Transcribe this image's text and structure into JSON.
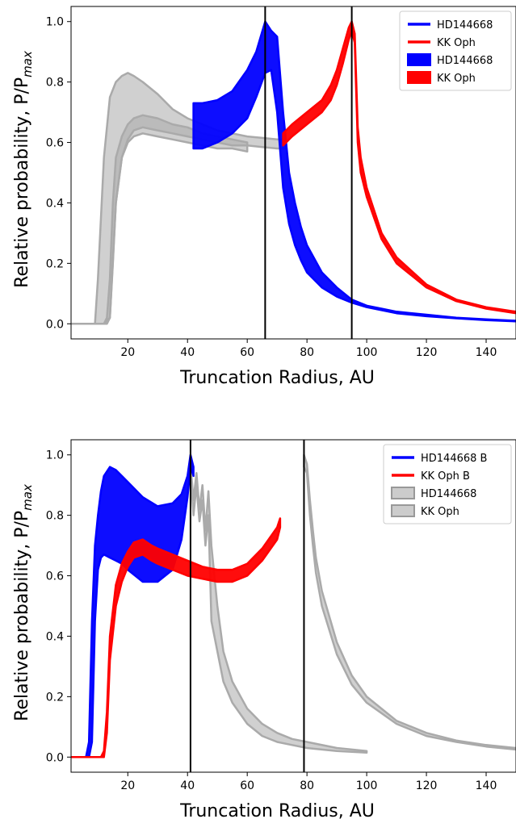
{
  "chart_data": [
    {
      "type": "line",
      "xlabel": "Truncation Radius, AU",
      "ylabel_main": "Relative probability, P/P",
      "ylabel_sub": "max",
      "xlim": [
        1,
        150
      ],
      "ylim": [
        -0.05,
        1.05
      ],
      "xticks": [
        20,
        40,
        60,
        80,
        100,
        120,
        140
      ],
      "yticks": [
        0.0,
        0.2,
        0.4,
        0.6,
        0.8,
        1.0
      ],
      "ytick_labels": [
        "0.0",
        "0.2",
        "0.4",
        "0.6",
        "0.8",
        "1.0"
      ],
      "vlines": [
        66,
        95
      ],
      "legend_position": "top-right",
      "legend": [
        {
          "label": "HD144668",
          "kind": "line",
          "color": "#0000ff"
        },
        {
          "label": "KK Oph",
          "kind": "line",
          "color": "#ff0000"
        },
        {
          "label": "HD144668",
          "kind": "patch",
          "color": "#0000ff"
        },
        {
          "label": "KK Oph",
          "kind": "patch",
          "color": "#ff0000"
        }
      ],
      "series": [
        {
          "color": "#aaaaaa",
          "style": "band",
          "x": [
            1,
            9,
            10,
            12,
            14,
            16,
            18,
            20,
            22,
            25,
            30,
            35,
            40,
            45,
            50,
            55,
            60,
            65,
            70,
            73
          ],
          "upper": [
            0,
            0,
            0.15,
            0.55,
            0.75,
            0.8,
            0.82,
            0.83,
            0.82,
            0.8,
            0.76,
            0.71,
            0.68,
            0.66,
            0.64,
            0.63,
            0.62,
            0.615,
            0.61,
            0.61
          ],
          "lower": [
            0,
            0,
            0,
            0,
            0.02,
            0.4,
            0.55,
            0.61,
            0.64,
            0.65,
            0.64,
            0.63,
            0.62,
            0.61,
            0.6,
            0.59,
            0.59,
            0.585,
            0.58,
            0.58
          ]
        },
        {
          "color": "#aaaaaa",
          "style": "band",
          "x": [
            1,
            12,
            13,
            14,
            15,
            16,
            18,
            20,
            22,
            25,
            30,
            35,
            40,
            45,
            50,
            55,
            60
          ],
          "upper": [
            0,
            0,
            0.02,
            0.15,
            0.4,
            0.55,
            0.62,
            0.66,
            0.68,
            0.69,
            0.68,
            0.66,
            0.65,
            0.63,
            0.62,
            0.61,
            0.6
          ],
          "lower": [
            0,
            0,
            0,
            0.02,
            0.2,
            0.4,
            0.55,
            0.6,
            0.62,
            0.63,
            0.62,
            0.61,
            0.6,
            0.59,
            0.58,
            0.58,
            0.57
          ]
        },
        {
          "color": "#0000ff",
          "style": "band",
          "x": [
            42,
            45,
            50,
            55,
            60,
            63,
            66,
            68,
            70,
            72,
            74,
            76,
            78,
            80,
            85,
            90,
            95,
            100,
            110,
            120,
            130,
            140,
            150
          ],
          "upper": [
            0.73,
            0.73,
            0.74,
            0.77,
            0.84,
            0.9,
            1.0,
            0.97,
            0.95,
            0.7,
            0.5,
            0.4,
            0.32,
            0.26,
            0.17,
            0.12,
            0.08,
            0.06,
            0.04,
            0.03,
            0.02,
            0.015,
            0.01
          ],
          "lower": [
            0.58,
            0.58,
            0.6,
            0.63,
            0.68,
            0.75,
            0.83,
            0.84,
            0.7,
            0.45,
            0.33,
            0.26,
            0.21,
            0.17,
            0.12,
            0.09,
            0.07,
            0.055,
            0.035,
            0.025,
            0.018,
            0.012,
            0.008
          ]
        },
        {
          "color": "#ff0000",
          "style": "band",
          "x": [
            72,
            75,
            80,
            85,
            88,
            90,
            92,
            94,
            95,
            96,
            97,
            98,
            100,
            105,
            110,
            120,
            130,
            140,
            150
          ],
          "upper": [
            0.63,
            0.66,
            0.7,
            0.74,
            0.79,
            0.84,
            0.91,
            0.98,
            1.0,
            0.96,
            0.65,
            0.55,
            0.45,
            0.3,
            0.22,
            0.13,
            0.08,
            0.055,
            0.04
          ],
          "lower": [
            0.59,
            0.62,
            0.66,
            0.7,
            0.74,
            0.79,
            0.86,
            0.94,
            0.97,
            0.93,
            0.6,
            0.5,
            0.42,
            0.28,
            0.2,
            0.12,
            0.075,
            0.05,
            0.035
          ]
        }
      ]
    },
    {
      "type": "line",
      "xlabel": "Truncation Radius, AU",
      "ylabel_main": "Relative probability, P/P",
      "ylabel_sub": "max",
      "xlim": [
        1,
        150
      ],
      "ylim": [
        -0.05,
        1.05
      ],
      "xticks": [
        20,
        40,
        60,
        80,
        100,
        120,
        140
      ],
      "yticks": [
        0.0,
        0.2,
        0.4,
        0.6,
        0.8,
        1.0
      ],
      "ytick_labels": [
        "0.0",
        "0.2",
        "0.4",
        "0.6",
        "0.8",
        "1.0"
      ],
      "vlines": [
        41,
        79
      ],
      "legend_position": "top-right",
      "legend": [
        {
          "label": "HD144668 B",
          "kind": "line",
          "color": "#0000ff"
        },
        {
          "label": "KK Oph B",
          "kind": "line",
          "color": "#ff0000"
        },
        {
          "label": "HD144668",
          "kind": "patch",
          "color": "#aaaaaa"
        },
        {
          "label": "KK Oph",
          "kind": "patch",
          "color": "#aaaaaa"
        }
      ],
      "series": [
        {
          "color": "#aaaaaa",
          "style": "band",
          "x": [
            41,
            42,
            43,
            44,
            45,
            46,
            47,
            48,
            50,
            52,
            55,
            60,
            65,
            70,
            75,
            80,
            90,
            100
          ],
          "upper": [
            0.97,
            0.85,
            0.94,
            0.82,
            0.9,
            0.75,
            0.88,
            0.7,
            0.5,
            0.35,
            0.25,
            0.16,
            0.11,
            0.08,
            0.06,
            0.05,
            0.03,
            0.02
          ],
          "lower": [
            0.95,
            0.8,
            0.9,
            0.78,
            0.85,
            0.7,
            0.8,
            0.45,
            0.35,
            0.25,
            0.18,
            0.11,
            0.07,
            0.05,
            0.04,
            0.03,
            0.02,
            0.015
          ]
        },
        {
          "color": "#aaaaaa",
          "style": "band",
          "x": [
            79,
            80,
            81,
            82,
            83,
            85,
            90,
            95,
            100,
            110,
            120,
            130,
            140,
            150
          ],
          "upper": [
            1.0,
            0.97,
            0.85,
            0.75,
            0.66,
            0.55,
            0.38,
            0.27,
            0.2,
            0.12,
            0.08,
            0.055,
            0.04,
            0.03
          ],
          "lower": [
            0.96,
            0.94,
            0.8,
            0.7,
            0.61,
            0.5,
            0.34,
            0.24,
            0.18,
            0.11,
            0.07,
            0.05,
            0.035,
            0.025
          ]
        },
        {
          "color": "#0000ff",
          "style": "band",
          "x": [
            1,
            6,
            7,
            8,
            9,
            10,
            11,
            12,
            14,
            16,
            18,
            20,
            25,
            30,
            35,
            38,
            40,
            41,
            42
          ],
          "upper": [
            0,
            0,
            0.05,
            0.45,
            0.7,
            0.8,
            0.88,
            0.93,
            0.96,
            0.95,
            0.93,
            0.91,
            0.86,
            0.83,
            0.84,
            0.87,
            0.93,
            1.0,
            0.96
          ],
          "lower": [
            0,
            0,
            0,
            0.05,
            0.45,
            0.62,
            0.66,
            0.67,
            0.66,
            0.65,
            0.64,
            0.62,
            0.58,
            0.58,
            0.62,
            0.72,
            0.86,
            0.96,
            0.93
          ]
        },
        {
          "color": "#ff0000",
          "style": "band",
          "x": [
            1,
            11,
            12,
            13,
            14,
            16,
            18,
            20,
            22,
            25,
            28,
            30,
            35,
            40,
            45,
            50,
            55,
            60,
            65,
            70,
            71
          ],
          "upper": [
            0,
            0,
            0.02,
            0.15,
            0.4,
            0.57,
            0.64,
            0.68,
            0.71,
            0.72,
            0.7,
            0.69,
            0.67,
            0.65,
            0.63,
            0.62,
            0.62,
            0.64,
            0.69,
            0.76,
            0.79
          ],
          "lower": [
            0,
            0,
            0,
            0.08,
            0.32,
            0.5,
            0.58,
            0.63,
            0.66,
            0.67,
            0.65,
            0.64,
            0.62,
            0.6,
            0.59,
            0.58,
            0.58,
            0.6,
            0.65,
            0.72,
            0.76
          ]
        }
      ]
    }
  ]
}
